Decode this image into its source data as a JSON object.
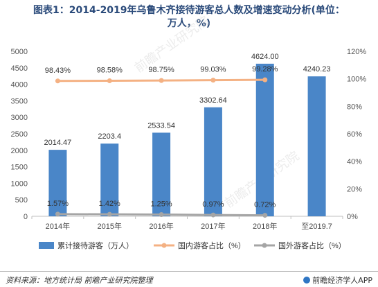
{
  "title_line1": "图表1：2014-2019年乌鲁木齐接待游客总人数及增速变动分析(单位：",
  "title_line2": "万人，%)",
  "source": "资料来源：地方统计局 前瞻产业研究院整理",
  "brand": "前瞻经济学人APP",
  "watermark": "前瞻产业研究院",
  "colors": {
    "bar": "#4a86c8",
    "domestic": "#f4b183",
    "foreign": "#a5a5a5"
  },
  "chart_data": {
    "type": "bar",
    "categories": [
      "2014年",
      "2015年",
      "2016年",
      "2017年",
      "2018年",
      "至2019.7"
    ],
    "series": [
      {
        "name": "累计接待游客（万人）",
        "type": "bar",
        "axis": "left",
        "values": [
          2014.47,
          2203.4,
          2533.54,
          3302.64,
          4624.0,
          4240.23
        ],
        "labels": [
          "2014.47",
          "2203.4",
          "2533.54",
          "3302.64",
          "4624.00",
          "4240.23"
        ]
      },
      {
        "name": "国内游客占比（%）",
        "type": "line",
        "axis": "right",
        "values": [
          98.43,
          98.58,
          98.75,
          99.03,
          99.28,
          null
        ],
        "labels": [
          "98.43%",
          "98.58%",
          "98.75%",
          "99.03%",
          "99.28%",
          ""
        ]
      },
      {
        "name": "国外游客占比（%）",
        "type": "line",
        "axis": "right",
        "values": [
          1.57,
          1.42,
          1.25,
          0.97,
          0.72,
          null
        ],
        "labels": [
          "1.57%",
          "1.42%",
          "1.25%",
          "0.97%",
          "0.72%",
          ""
        ]
      }
    ],
    "yleft": {
      "min": 0,
      "max": 5000,
      "ticks": [
        "0",
        "500",
        "1000",
        "1500",
        "2000",
        "2500",
        "3000",
        "3500",
        "4000",
        "4500",
        "5000"
      ]
    },
    "yright": {
      "min": 0,
      "max": 120,
      "ticks": [
        "0%",
        "20%",
        "40%",
        "60%",
        "80%",
        "100%",
        "120%"
      ]
    },
    "legend_position": "bottom",
    "grid": false
  }
}
